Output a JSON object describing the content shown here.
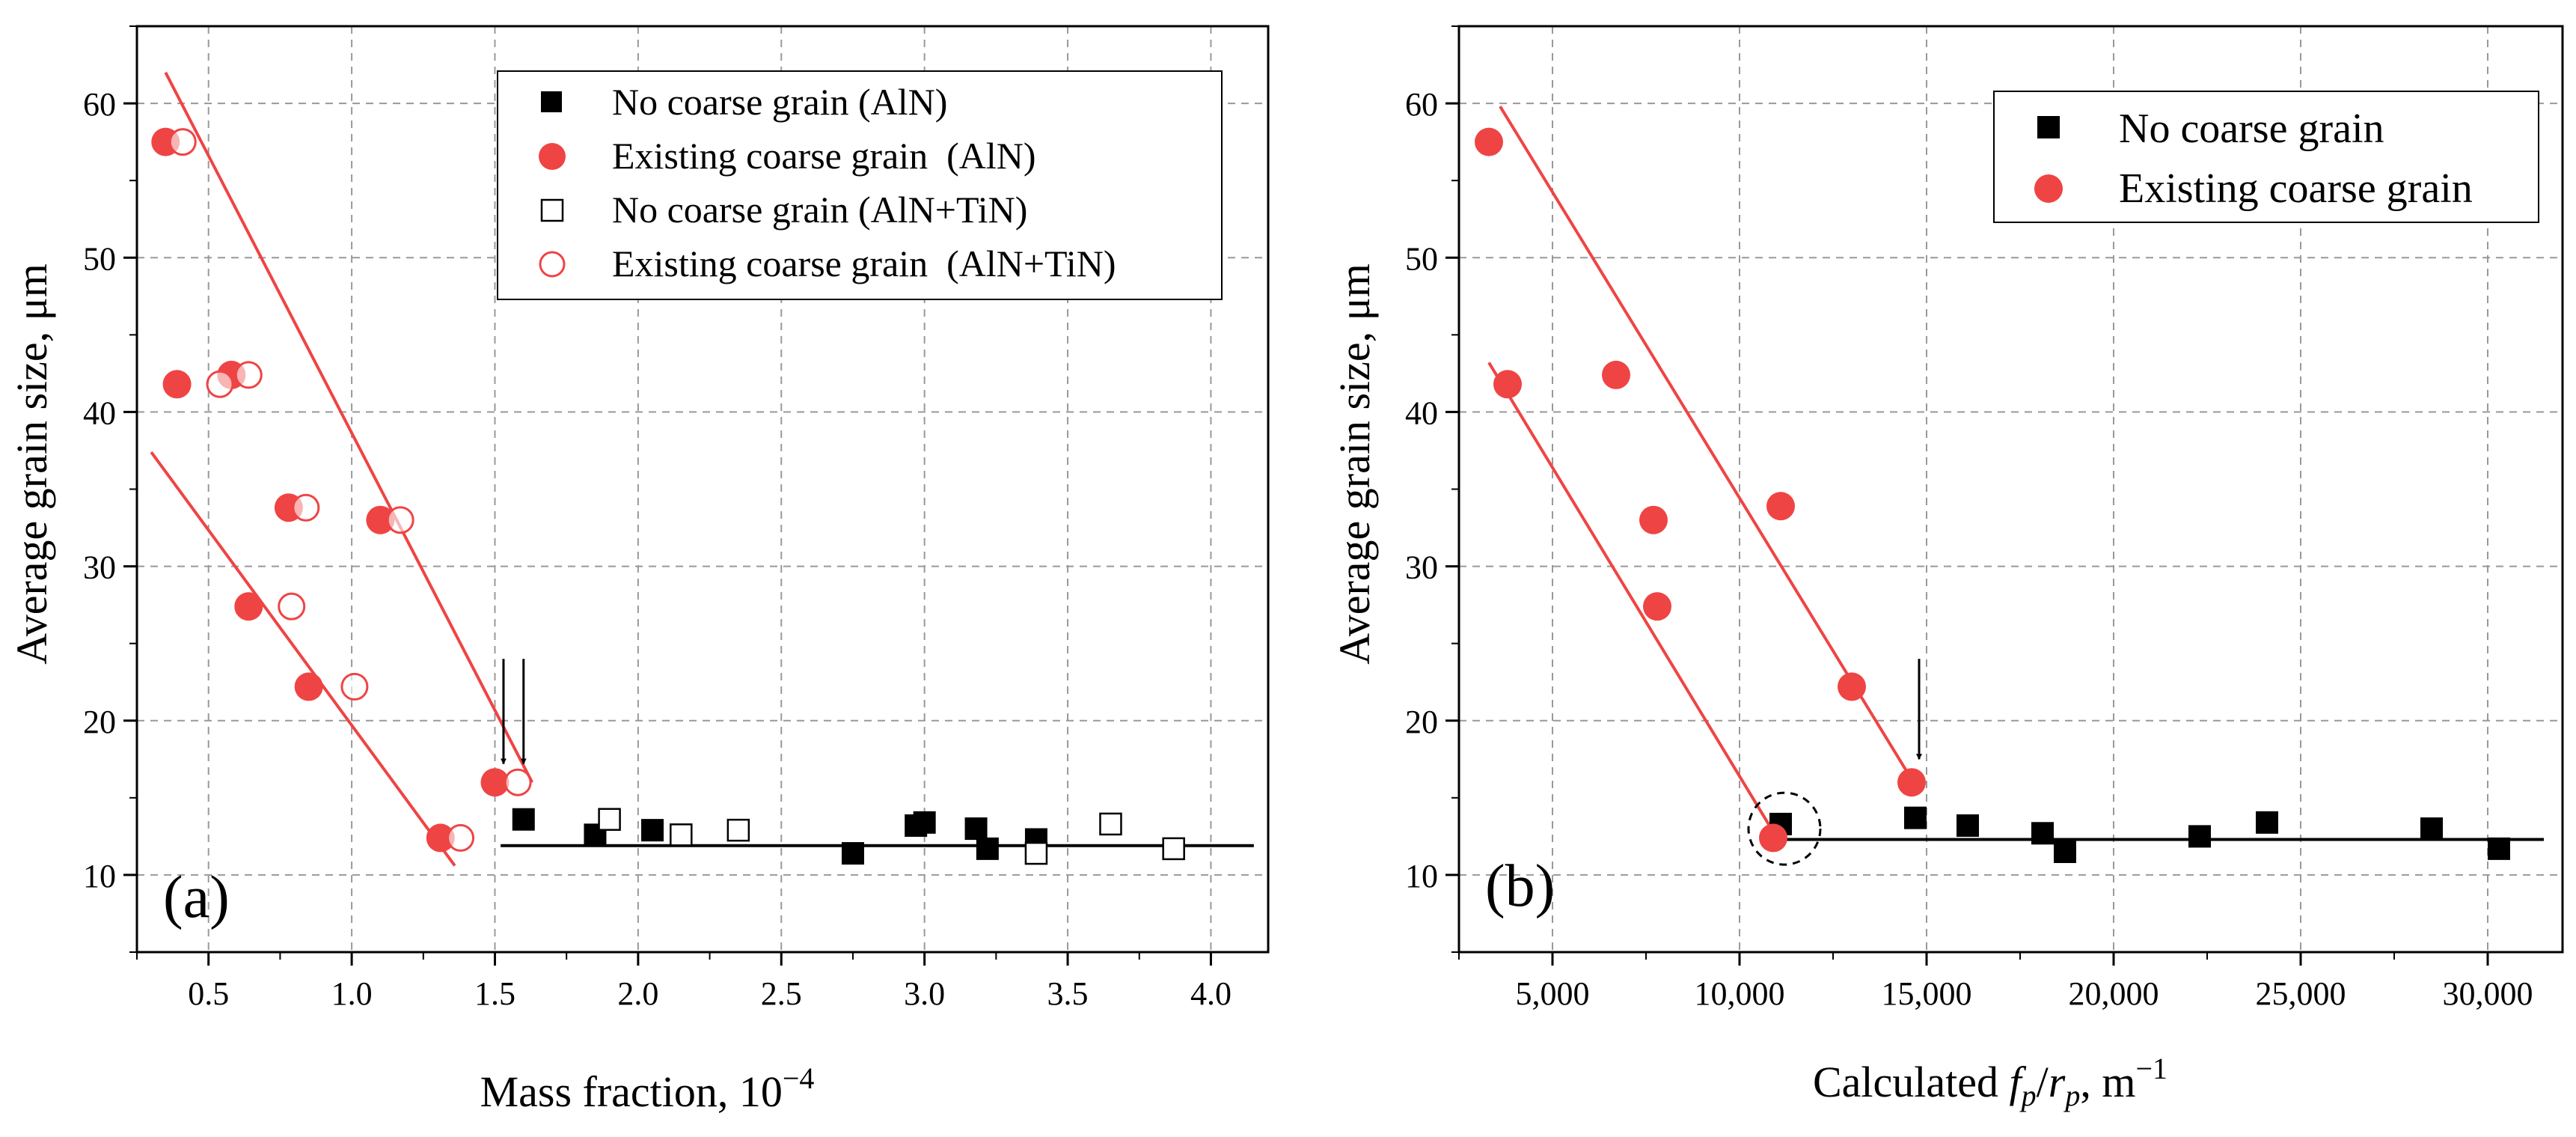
{
  "chart_data": [
    {
      "type": "scatter",
      "panel_label": "(a)",
      "xlabel": "Mass fraction, 10",
      "xlabel_sup": "−4",
      "ylabel": "Average grain size, μm",
      "xlim": [
        0.25,
        4.2
      ],
      "ylim": [
        5,
        65
      ],
      "xticks": [
        0.5,
        1.0,
        1.5,
        2.0,
        2.5,
        3.0,
        3.5,
        4.0
      ],
      "xtick_labels": [
        "0.5",
        "1.0",
        "1.5",
        "2.0",
        "2.5",
        "3.0",
        "3.5",
        "4.0"
      ],
      "yticks": [
        10,
        20,
        30,
        40,
        50,
        60
      ],
      "ytick_labels": [
        "10",
        "20",
        "30",
        "40",
        "50",
        "60"
      ],
      "grid": true,
      "legend_position": "top-right",
      "series": [
        {
          "name": "No coarse grain (AlN)",
          "marker": "square-filled",
          "color": "#000000",
          "points": [
            [
              1.6,
              13.6
            ],
            [
              1.85,
              12.6
            ],
            [
              2.05,
              12.9
            ],
            [
              2.75,
              11.4
            ],
            [
              2.97,
              13.2
            ],
            [
              3.0,
              13.4
            ],
            [
              3.18,
              13.0
            ],
            [
              3.22,
              11.7
            ],
            [
              3.39,
              12.3
            ]
          ]
        },
        {
          "name": "Existing coarse grain  (AlN)",
          "marker": "circle-filled",
          "color": "#ef4444",
          "points": [
            [
              0.35,
              57.5
            ],
            [
              0.39,
              41.8
            ],
            [
              0.58,
              42.4
            ],
            [
              0.64,
              27.4
            ],
            [
              0.78,
              33.8
            ],
            [
              0.85,
              22.2
            ],
            [
              1.1,
              33.0
            ],
            [
              1.31,
              12.4
            ],
            [
              1.5,
              16.0
            ]
          ]
        },
        {
          "name": "No coarse grain (AlN+TiN)",
          "marker": "square-open",
          "color": "#000000",
          "points": [
            [
              1.9,
              13.6
            ],
            [
              2.15,
              12.6
            ],
            [
              2.35,
              12.9
            ],
            [
              3.39,
              11.4
            ],
            [
              3.65,
              13.3
            ],
            [
              3.87,
              11.7
            ]
          ]
        },
        {
          "name": "Existing coarse grain  (AlN+TiN)",
          "marker": "circle-open",
          "color": "#ef4444",
          "points": [
            [
              0.41,
              57.5
            ],
            [
              0.54,
              41.8
            ],
            [
              0.64,
              42.4
            ],
            [
              0.79,
              27.4
            ],
            [
              0.84,
              33.8
            ],
            [
              1.01,
              22.2
            ],
            [
              1.17,
              33.0
            ],
            [
              1.38,
              12.4
            ],
            [
              1.58,
              16.0
            ]
          ]
        }
      ],
      "fit_lines": [
        {
          "color": "#ef4444",
          "from": [
            0.35,
            62.0
          ],
          "to": [
            1.63,
            16.0
          ]
        },
        {
          "color": "#ef4444",
          "from": [
            0.3,
            37.4
          ],
          "to": [
            1.36,
            10.6
          ]
        },
        {
          "color": "#000000",
          "from": [
            1.52,
            11.9
          ],
          "to": [
            4.15,
            11.9
          ]
        }
      ],
      "arrows": [
        {
          "x": 1.53,
          "y_top": 24.0,
          "y_tip": 17.2
        },
        {
          "x": 1.6,
          "y_top": 24.0,
          "y_tip": 17.2
        }
      ]
    },
    {
      "type": "scatter",
      "panel_label": "(b)",
      "xlabel": "Calculated",
      "xlabel_var_f": "f",
      "xlabel_sub_p1": "p",
      "xlabel_slash": "/",
      "xlabel_var_r": "r",
      "xlabel_sub_p2": "p",
      "xlabel_unit": ", m",
      "xlabel_sup": "−1",
      "ylabel": "Average grain size, μm",
      "xlim": [
        2500,
        32000
      ],
      "ylim": [
        5,
        65
      ],
      "xticks": [
        5000,
        10000,
        15000,
        20000,
        25000,
        30000
      ],
      "xtick_labels": [
        "5,000",
        "10,000",
        "15,000",
        "20,000",
        "25,000",
        "30,000"
      ],
      "yticks": [
        10,
        20,
        30,
        40,
        50,
        60
      ],
      "ytick_labels": [
        "10",
        "20",
        "30",
        "40",
        "50",
        "60"
      ],
      "grid": true,
      "legend_position": "top-right",
      "series": [
        {
          "name": "No coarse grain",
          "marker": "square-filled",
          "color": "#000000",
          "points": [
            [
              11100,
              13.3
            ],
            [
              14700,
              13.7
            ],
            [
              16100,
              13.2
            ],
            [
              18100,
              12.7
            ],
            [
              18700,
              11.5
            ],
            [
              22300,
              12.5
            ],
            [
              24100,
              13.4
            ],
            [
              28500,
              13.0
            ],
            [
              30300,
              11.7
            ]
          ]
        },
        {
          "name": "Existing coarse grain",
          "marker": "circle-filled",
          "color": "#ef4444",
          "points": [
            [
              3300,
              57.5
            ],
            [
              3800,
              41.8
            ],
            [
              6700,
              42.4
            ],
            [
              7700,
              33.0
            ],
            [
              7800,
              27.4
            ],
            [
              10900,
              12.4
            ],
            [
              11100,
              33.9
            ],
            [
              13000,
              22.2
            ],
            [
              14600,
              16.0
            ]
          ]
        }
      ],
      "fit_lines": [
        {
          "color": "#ef4444",
          "from": [
            3600,
            59.8
          ],
          "to": [
            14750,
            15.6
          ]
        },
        {
          "color": "#ef4444",
          "from": [
            3300,
            43.2
          ],
          "to": [
            10950,
            12.6
          ]
        },
        {
          "color": "#000000",
          "from": [
            10950,
            12.3
          ],
          "to": [
            31500,
            12.3
          ]
        }
      ],
      "arrows": [
        {
          "x": 14800,
          "y_top": 24.0,
          "y_tip": 17.5
        }
      ],
      "highlight_circle": {
        "x": 11200,
        "y": 13.0
      }
    }
  ]
}
